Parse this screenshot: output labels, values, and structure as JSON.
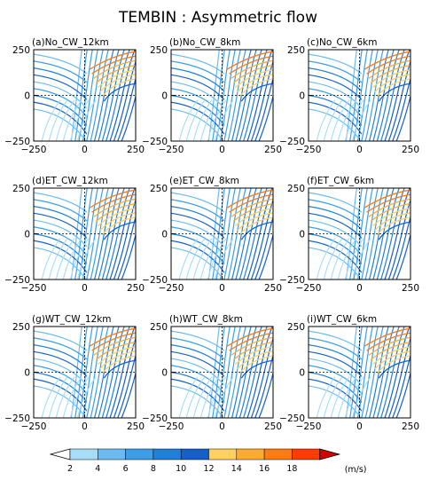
{
  "title": "TEMBIN : Asymmetric flow",
  "chart_data": [
    {
      "type": "streamline",
      "panel": "(a)No_CW_12km",
      "row": 0,
      "col": 0
    },
    {
      "type": "streamline",
      "panel": "(b)No_CW_8km",
      "row": 0,
      "col": 1
    },
    {
      "type": "streamline",
      "panel": "(c)No_CW_6km",
      "row": 0,
      "col": 2
    },
    {
      "type": "streamline",
      "panel": "(d)ET_CW_12km",
      "row": 1,
      "col": 0
    },
    {
      "type": "streamline",
      "panel": "(e)ET_CW_8km",
      "row": 1,
      "col": 1
    },
    {
      "type": "streamline",
      "panel": "(f)ET_CW_6km",
      "row": 1,
      "col": 2
    },
    {
      "type": "streamline",
      "panel": "(g)WT_CW_12km",
      "row": 2,
      "col": 0
    },
    {
      "type": "streamline",
      "panel": "(h)WT_CW_8km",
      "row": 2,
      "col": 1
    },
    {
      "type": "streamline",
      "panel": "(i)WT_CW_6km",
      "row": 2,
      "col": 2
    }
  ],
  "axes": {
    "x_ticks": [
      "−250",
      "0",
      "250"
    ],
    "y_ticks": [
      "250",
      "0",
      "−250"
    ],
    "xlim": [
      -250,
      250
    ],
    "ylim": [
      -250,
      250
    ]
  },
  "colorbar": {
    "ticks": [
      "2",
      "4",
      "6",
      "8",
      "10",
      "12",
      "14",
      "16",
      "18"
    ],
    "unit": "(m/s)",
    "colors": [
      "#a6dcf7",
      "#6cbbf0",
      "#3d9ee8",
      "#1f7fd9",
      "#1460c8",
      "#ffd060",
      "#ffaa30",
      "#ff7a10",
      "#ff3b00",
      "#d40000"
    ]
  }
}
